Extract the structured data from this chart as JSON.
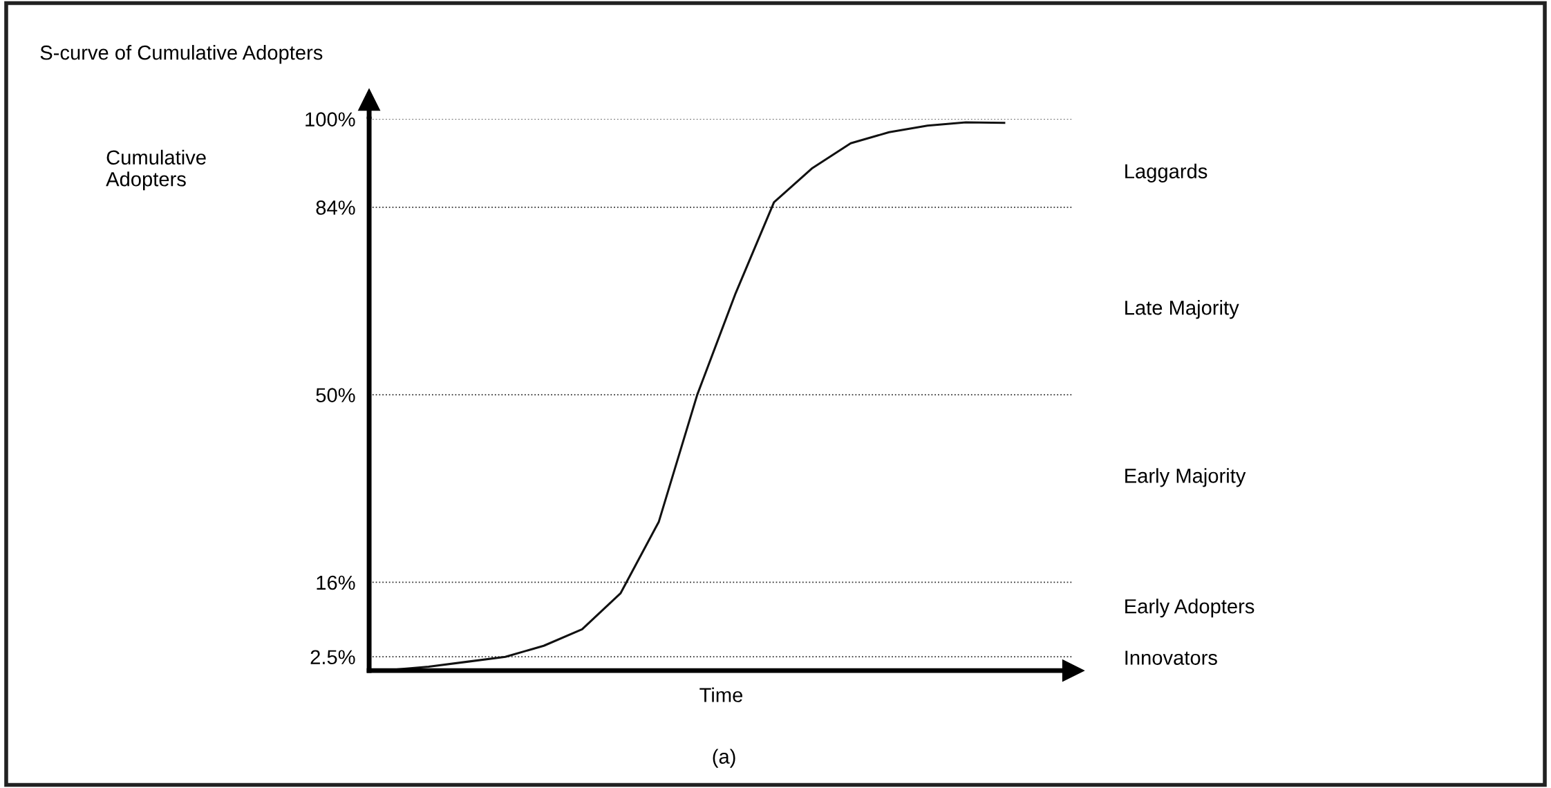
{
  "chart_data": {
    "type": "line",
    "title": "S-curve of Cumulative Adopters",
    "ylabel": "Cumulative\nAdopters",
    "xlabel": "Time",
    "categories": [
      null,
      null,
      null,
      null,
      null,
      null,
      null,
      null,
      null,
      null,
      null,
      null,
      null,
      null,
      null,
      null,
      null
    ],
    "series": [
      {
        "color": "#111111",
        "values": [
          0.1,
          0.7,
          1.6,
          2.5,
          4.5,
          7.5,
          14,
          27,
          50,
          68.4,
          84.9,
          91.1,
          95.6,
          97.6,
          98.8,
          99.4,
          99.3
        ]
      }
    ],
    "ylim": [
      0,
      100
    ],
    "yticks": [
      {
        "value": 2.5,
        "label": "2.5%"
      },
      {
        "value": 16,
        "label": "16%"
      },
      {
        "value": 50,
        "label": "50%"
      },
      {
        "value": 84,
        "label": "84%"
      },
      {
        "value": 100,
        "label": "100%"
      }
    ],
    "grid": "y",
    "line_style": "solid",
    "marker": "none",
    "annotations": [
      "Laggards",
      "Late Majority",
      "Early Majority",
      "Early Adopters",
      "Innovators",
      "(a)"
    ]
  }
}
